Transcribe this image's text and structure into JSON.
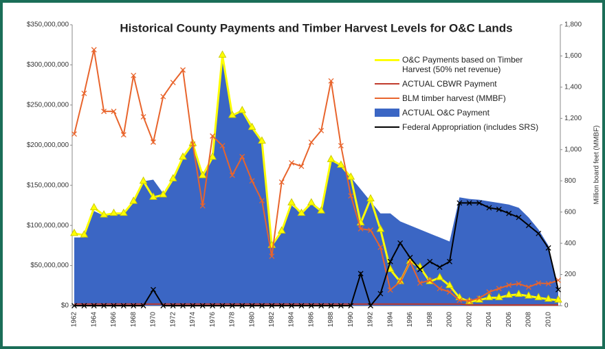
{
  "chart_data": {
    "type": "line",
    "title": "Historical County Payments and Timber Harvest Levels for O&C Lands",
    "y2_label": "Million board feet (MMBF)",
    "categories": [
      "1962",
      null,
      "1964",
      null,
      "1966",
      null,
      "1968",
      null,
      "1970",
      null,
      "1972",
      null,
      "1974",
      null,
      "1976",
      null,
      "1978",
      null,
      "1980",
      null,
      "1982",
      null,
      "1984",
      null,
      "1986",
      null,
      "1988",
      null,
      "1990",
      null,
      "1992",
      null,
      "1994",
      null,
      "1996",
      null,
      "1998",
      null,
      "2000",
      null,
      "2002",
      null,
      "2004",
      null,
      "2006",
      null,
      "2008",
      null,
      "2010",
      null
    ],
    "ylim": [
      0,
      350000000
    ],
    "yticks": [
      {
        "value": 0,
        "label": "$0"
      },
      {
        "value": 50000000,
        "label": "$50,000,000"
      },
      {
        "value": 100000000,
        "label": "$100,000,000"
      },
      {
        "value": 150000000,
        "label": "$150,000,000"
      },
      {
        "value": 200000000,
        "label": "$200,000,000"
      },
      {
        "value": 250000000,
        "label": "$250,000,000"
      },
      {
        "value": 300000000,
        "label": "$300,000,000"
      },
      {
        "value": 350000000,
        "label": "$350,000,000"
      }
    ],
    "y2lim": [
      0,
      1800
    ],
    "y2ticks": [
      0,
      200,
      400,
      600,
      800,
      {
        "value": 1000,
        "label": "1,000"
      },
      {
        "value": 1200,
        "label": "1,200"
      },
      {
        "value": 1400,
        "label": "1,400"
      },
      {
        "value": 1600,
        "label": "1,600"
      },
      {
        "value": 1800,
        "label": "1,800"
      }
    ],
    "series": [
      {
        "name": "ACTUAL O&C Payment",
        "type": "area",
        "color": "#3b66c4",
        "marker": "none",
        "values": [
          85000000,
          85000000,
          118000000,
          112000000,
          115000000,
          115000000,
          130000000,
          155000000,
          157000000,
          140000000,
          160000000,
          185000000,
          205000000,
          165000000,
          185000000,
          310000000,
          237000000,
          245000000,
          225000000,
          205000000,
          75000000,
          95000000,
          125000000,
          115000000,
          128000000,
          120000000,
          180000000,
          175000000,
          160000000,
          145000000,
          130000000,
          115000000,
          115000000,
          105000000,
          100000000,
          95000000,
          90000000,
          85000000,
          80000000,
          135000000,
          133000000,
          132000000,
          130000000,
          128000000,
          126000000,
          122000000,
          110000000,
          95000000,
          75000000,
          20000000
        ]
      },
      {
        "name": "O&C Payments based on Timber Harvest (50% net revenue)",
        "type": "line",
        "color": "#ffff00",
        "marker": "triangle",
        "values": [
          90000000,
          88000000,
          122000000,
          113000000,
          115000000,
          115000000,
          130000000,
          155000000,
          135000000,
          138000000,
          158000000,
          185000000,
          202000000,
          162000000,
          185000000,
          312000000,
          237000000,
          243000000,
          222000000,
          205000000,
          75000000,
          93000000,
          128000000,
          115000000,
          128000000,
          118000000,
          182000000,
          175000000,
          160000000,
          103000000,
          133000000,
          95000000,
          45000000,
          30000000,
          55000000,
          48000000,
          30000000,
          35000000,
          25000000,
          10000000,
          5000000,
          7000000,
          10000000,
          10000000,
          13000000,
          14000000,
          12000000,
          10000000,
          8000000,
          7000000
        ]
      },
      {
        "name": "ACTUAL CBWR Payment",
        "type": "line",
        "color": "#c0392b",
        "marker": "none",
        "values": [
          2000000,
          2000000,
          2000000,
          2000000,
          2000000,
          2000000,
          2000000,
          2000000,
          2000000,
          2000000,
          2000000,
          2000000,
          2000000,
          2000000,
          2000000,
          2000000,
          2000000,
          2000000,
          2000000,
          2000000,
          2000000,
          2000000,
          2000000,
          2000000,
          2000000,
          2000000,
          2000000,
          2000000,
          2000000,
          2000000,
          2000000,
          2000000,
          2000000,
          2000000,
          2000000,
          2000000,
          2000000,
          2000000,
          2000000,
          2000000,
          1000000,
          1000000,
          1000000,
          1000000,
          1000000,
          1000000,
          1000000,
          1000000,
          1000000,
          1000000
        ]
      },
      {
        "name": "BLM timber harvest (MMBF)",
        "type": "line",
        "color": "#e8642c",
        "marker": "x",
        "axis": "y2",
        "values": [
          1100,
          1360,
          1640,
          1245,
          1245,
          1095,
          1475,
          1210,
          1048,
          1340,
          1430,
          1510,
          1035,
          640,
          1087,
          1025,
          836,
          955,
          800,
          673,
          317,
          792,
          915,
          893,
          1047,
          1122,
          1440,
          1025,
          704,
          493,
          484,
          374,
          101,
          154,
          282,
          145,
          163,
          110,
          88,
          35,
          31,
          48,
          88,
          110,
          132,
          141,
          119,
          145,
          141,
          163
        ]
      },
      {
        "name": "Federal Appropriation (includes SRS)",
        "type": "line",
        "color": "#000000",
        "marker": "x",
        "values": [
          0,
          0,
          0,
          0,
          0,
          0,
          0,
          0,
          20000000,
          0,
          0,
          0,
          0,
          0,
          0,
          0,
          0,
          0,
          0,
          0,
          0,
          0,
          0,
          0,
          0,
          0,
          0,
          0,
          0,
          40000000,
          0,
          15000000,
          55000000,
          78000000,
          60000000,
          45000000,
          55000000,
          48000000,
          55000000,
          128000000,
          128000000,
          128000000,
          122000000,
          120000000,
          115000000,
          110000000,
          100000000,
          90000000,
          72000000,
          20000000
        ]
      }
    ],
    "legend_order": [
      1,
      2,
      3,
      0,
      4
    ]
  }
}
